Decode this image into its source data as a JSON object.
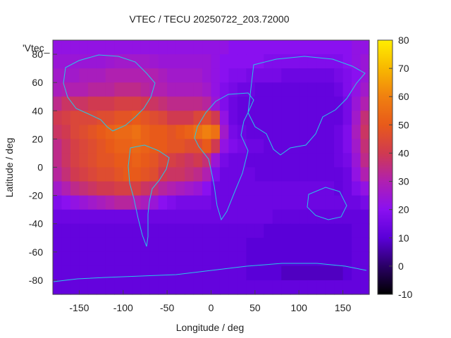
{
  "chart_data": {
    "type": "heatmap",
    "title": "VTEC / TECU 20250722_203.72000",
    "xlabel": "Longitude / deg",
    "ylabel": "Latitude / deg",
    "key_label": "'Vtec_",
    "xlim": [
      -180,
      180
    ],
    "ylim": [
      -90,
      90
    ],
    "x_ticks": [
      -150,
      -100,
      -50,
      0,
      50,
      100,
      150
    ],
    "y_ticks": [
      80,
      60,
      40,
      20,
      0,
      -20,
      -40,
      -60,
      -80
    ],
    "colorbar": {
      "range": [
        -10,
        80
      ],
      "ticks": [
        80,
        70,
        60,
        50,
        40,
        30,
        20,
        10,
        0,
        -10
      ],
      "palette": [
        "#000000",
        "#2a0066",
        "#5a00d8",
        "#8a10f0",
        "#b020b0",
        "#d03a50",
        "#e85a1a",
        "#f08010",
        "#f8b800",
        "#ffee00"
      ]
    },
    "data_grid": {
      "lon_step": 10,
      "lat_step": 10,
      "lons": [
        -175,
        -165,
        -155,
        -145,
        -135,
        -125,
        -115,
        -105,
        -95,
        -85,
        -75,
        -65,
        -55,
        -45,
        -35,
        -25,
        -15,
        -5,
        5,
        15,
        25,
        35,
        45,
        55,
        65,
        75,
        85,
        95,
        105,
        115,
        125,
        135,
        145,
        155,
        165,
        175
      ],
      "lats": [
        85,
        75,
        65,
        55,
        45,
        35,
        25,
        15,
        5,
        -5,
        -15,
        -25,
        -35,
        -45,
        -55,
        -65,
        -75,
        -85
      ],
      "values": [
        [
          22,
          22,
          22,
          22,
          22,
          22,
          22,
          22,
          22,
          22,
          22,
          22,
          22,
          22,
          22,
          22,
          22,
          22,
          22,
          22,
          20,
          20,
          20,
          20,
          20,
          20,
          20,
          20,
          20,
          20,
          20,
          20,
          20,
          20,
          22,
          22
        ],
        [
          24,
          24,
          24,
          24,
          24,
          24,
          25,
          26,
          26,
          26,
          26,
          25,
          24,
          24,
          24,
          24,
          24,
          24,
          22,
          20,
          20,
          20,
          20,
          20,
          18,
          18,
          18,
          18,
          18,
          18,
          18,
          18,
          18,
          20,
          22,
          24
        ],
        [
          26,
          26,
          26,
          28,
          28,
          28,
          30,
          30,
          30,
          30,
          30,
          30,
          28,
          26,
          26,
          26,
          26,
          24,
          22,
          20,
          18,
          18,
          16,
          16,
          16,
          16,
          14,
          14,
          14,
          14,
          14,
          14,
          16,
          18,
          20,
          24
        ],
        [
          28,
          30,
          30,
          30,
          32,
          32,
          32,
          34,
          34,
          34,
          32,
          30,
          30,
          28,
          28,
          28,
          28,
          26,
          22,
          18,
          16,
          14,
          14,
          12,
          12,
          12,
          12,
          12,
          12,
          12,
          12,
          12,
          14,
          18,
          22,
          26
        ],
        [
          34,
          38,
          38,
          38,
          40,
          40,
          40,
          42,
          42,
          42,
          40,
          38,
          36,
          34,
          34,
          34,
          34,
          32,
          24,
          18,
          14,
          12,
          12,
          12,
          12,
          12,
          12,
          12,
          12,
          12,
          12,
          12,
          12,
          16,
          24,
          30
        ],
        [
          40,
          42,
          44,
          44,
          44,
          46,
          46,
          48,
          48,
          50,
          48,
          46,
          44,
          40,
          40,
          40,
          44,
          46,
          40,
          22,
          14,
          12,
          12,
          12,
          12,
          12,
          12,
          12,
          12,
          12,
          12,
          12,
          12,
          16,
          26,
          36
        ],
        [
          38,
          40,
          44,
          46,
          48,
          50,
          52,
          54,
          54,
          56,
          52,
          50,
          50,
          48,
          50,
          52,
          56,
          60,
          56,
          26,
          16,
          14,
          12,
          12,
          12,
          12,
          12,
          12,
          12,
          12,
          12,
          12,
          14,
          18,
          28,
          38
        ],
        [
          34,
          38,
          42,
          44,
          46,
          48,
          50,
          52,
          52,
          54,
          52,
          50,
          50,
          48,
          48,
          46,
          46,
          50,
          40,
          22,
          18,
          16,
          14,
          14,
          12,
          12,
          12,
          12,
          12,
          12,
          12,
          12,
          14,
          18,
          26,
          36
        ],
        [
          34,
          38,
          42,
          44,
          46,
          48,
          48,
          50,
          50,
          52,
          50,
          48,
          44,
          42,
          40,
          38,
          40,
          36,
          24,
          16,
          14,
          14,
          12,
          12,
          12,
          12,
          12,
          12,
          12,
          12,
          12,
          12,
          14,
          16,
          24,
          34
        ],
        [
          32,
          36,
          40,
          42,
          44,
          46,
          46,
          48,
          50,
          50,
          48,
          46,
          40,
          38,
          38,
          36,
          34,
          30,
          18,
          14,
          14,
          14,
          14,
          12,
          12,
          12,
          12,
          12,
          12,
          12,
          12,
          12,
          12,
          14,
          22,
          30
        ],
        [
          26,
          30,
          34,
          36,
          38,
          40,
          40,
          42,
          42,
          42,
          38,
          36,
          32,
          30,
          28,
          26,
          24,
          20,
          14,
          14,
          14,
          14,
          14,
          14,
          14,
          14,
          14,
          14,
          14,
          14,
          14,
          14,
          12,
          14,
          18,
          22
        ],
        [
          18,
          20,
          22,
          24,
          26,
          28,
          30,
          32,
          32,
          30,
          28,
          24,
          20,
          18,
          16,
          16,
          16,
          16,
          14,
          14,
          14,
          14,
          14,
          14,
          14,
          14,
          14,
          14,
          14,
          14,
          14,
          14,
          14,
          14,
          14,
          16
        ],
        [
          14,
          14,
          14,
          14,
          14,
          14,
          14,
          14,
          14,
          14,
          14,
          14,
          14,
          14,
          14,
          14,
          14,
          14,
          14,
          14,
          14,
          14,
          14,
          14,
          14,
          12,
          12,
          12,
          12,
          12,
          12,
          12,
          12,
          12,
          12,
          12
        ],
        [
          12,
          12,
          12,
          12,
          12,
          12,
          12,
          12,
          12,
          12,
          12,
          12,
          12,
          12,
          12,
          12,
          12,
          12,
          12,
          12,
          12,
          12,
          12,
          12,
          10,
          10,
          10,
          10,
          10,
          10,
          10,
          10,
          10,
          10,
          12,
          12
        ],
        [
          12,
          12,
          12,
          12,
          12,
          12,
          12,
          12,
          12,
          12,
          12,
          12,
          12,
          12,
          12,
          12,
          12,
          12,
          12,
          12,
          12,
          12,
          10,
          10,
          10,
          10,
          10,
          10,
          10,
          10,
          10,
          10,
          10,
          10,
          12,
          12
        ],
        [
          12,
          12,
          12,
          12,
          12,
          12,
          12,
          12,
          12,
          12,
          12,
          12,
          12,
          12,
          12,
          12,
          12,
          12,
          12,
          12,
          12,
          12,
          10,
          10,
          10,
          10,
          10,
          10,
          10,
          10,
          10,
          10,
          10,
          10,
          12,
          12
        ],
        [
          12,
          12,
          12,
          12,
          12,
          12,
          12,
          12,
          12,
          12,
          12,
          12,
          12,
          12,
          12,
          12,
          12,
          12,
          12,
          12,
          12,
          12,
          10,
          10,
          10,
          10,
          8,
          8,
          8,
          8,
          8,
          8,
          8,
          10,
          12,
          12
        ],
        [
          12,
          12,
          12,
          12,
          12,
          12,
          12,
          12,
          12,
          12,
          12,
          12,
          12,
          12,
          12,
          12,
          12,
          12,
          12,
          12,
          12,
          12,
          12,
          12,
          12,
          12,
          12,
          12,
          12,
          12,
          12,
          12,
          12,
          12,
          12,
          12
        ]
      ]
    }
  }
}
